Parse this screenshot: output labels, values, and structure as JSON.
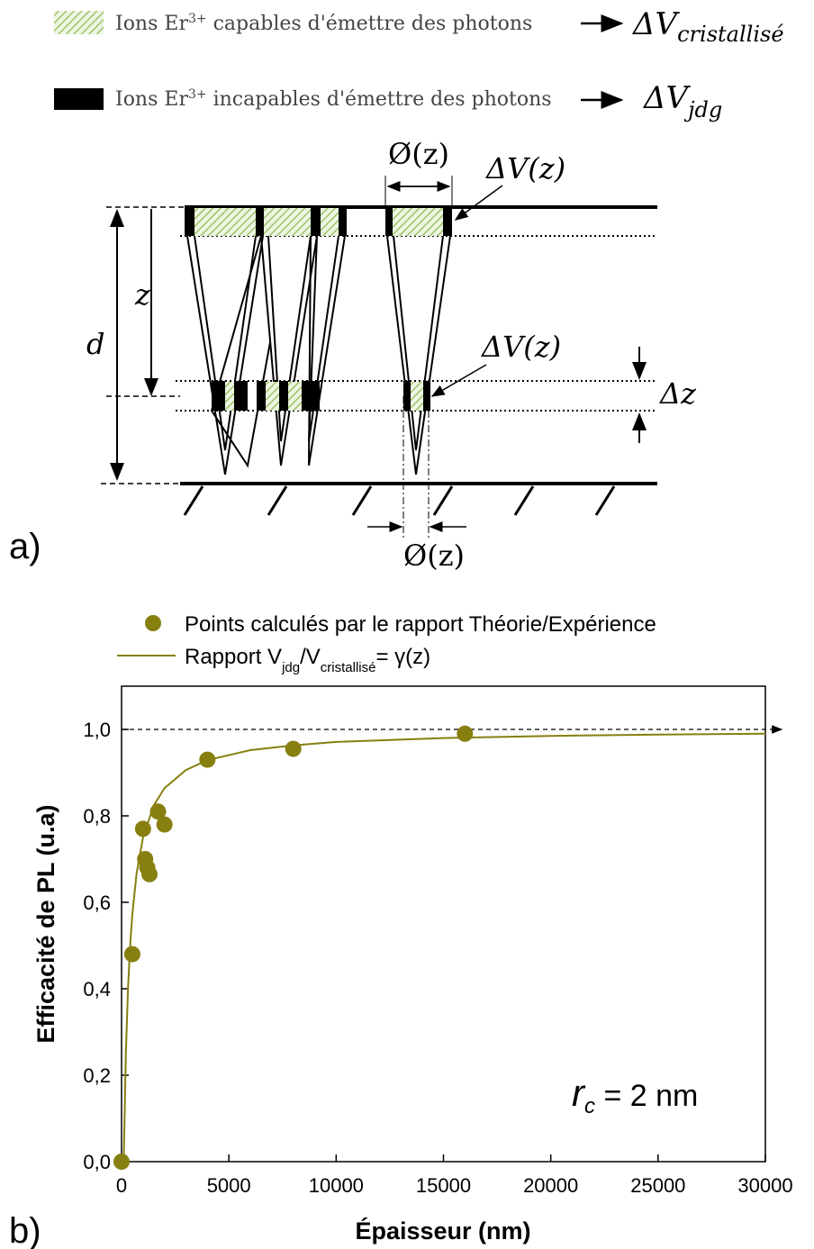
{
  "diagram": {
    "legend": [
      {
        "text_parts": [
          "Ions Er",
          "3+",
          " capables d'émettre des photons"
        ],
        "target": "ΔV",
        "target_sub": "cristallisé"
      },
      {
        "text_parts": [
          "Ions Er",
          "3+",
          " incapables d'émettre des photons"
        ],
        "target": "ΔV",
        "target_sub": "jdg"
      }
    ],
    "labels": {
      "diameter_top": "Ø(z)",
      "dv_top": "ΔV(z)",
      "z": "z",
      "d": "d",
      "dv_mid": "ΔV(z)",
      "dz": "Δz",
      "diameter_bottom": "Ø(z)"
    },
    "panel": "a)"
  },
  "chart_data": {
    "type": "scatter",
    "panel": "b)",
    "x_label": "Épaisseur (nm)",
    "y_label": "Efficacité de PL (u.a)",
    "annotation": {
      "symbol": "r",
      "sub": "c",
      "rest": " = 2 nm"
    },
    "xlim": [
      0,
      30000
    ],
    "ylim": [
      0,
      1.1
    ],
    "xticks": [
      0,
      5000,
      10000,
      15000,
      20000,
      25000,
      30000
    ],
    "yticks": [
      {
        "value": 0,
        "label": "0,0"
      },
      {
        "value": 0.2,
        "label": "0,2"
      },
      {
        "value": 0.4,
        "label": "0,4"
      },
      {
        "value": 0.6,
        "label": "0,6"
      },
      {
        "value": 0.8,
        "label": "0,8"
      },
      {
        "value": 1.0,
        "label": "1,0"
      }
    ],
    "reference_line": 1.0,
    "series": [
      {
        "name": "Points calculés par le rapport Théorie/Expérience",
        "color": "#877f10",
        "x": [
          0,
          500,
          1000,
          1100,
          1200,
          1300,
          1700,
          2000,
          4000,
          8000,
          16000
        ],
        "values": [
          0.0,
          0.48,
          0.77,
          0.7,
          0.68,
          0.665,
          0.81,
          0.78,
          0.93,
          0.955,
          0.99
        ]
      },
      {
        "name_parts": [
          "Rapport V",
          "jdg",
          "/V",
          "cristallisé",
          "= γ(z)"
        ],
        "color": "#877f10",
        "x": [
          100,
          200,
          300,
          400,
          500,
          700,
          1000,
          1500,
          2000,
          3000,
          4000,
          6000,
          8000,
          10000,
          15000,
          20000,
          25000,
          30000
        ],
        "values": [
          0.0,
          0.25,
          0.4,
          0.5,
          0.571,
          0.667,
          0.75,
          0.824,
          0.864,
          0.906,
          0.929,
          0.952,
          0.963,
          0.971,
          0.98,
          0.985,
          0.988,
          0.99
        ]
      }
    ]
  }
}
